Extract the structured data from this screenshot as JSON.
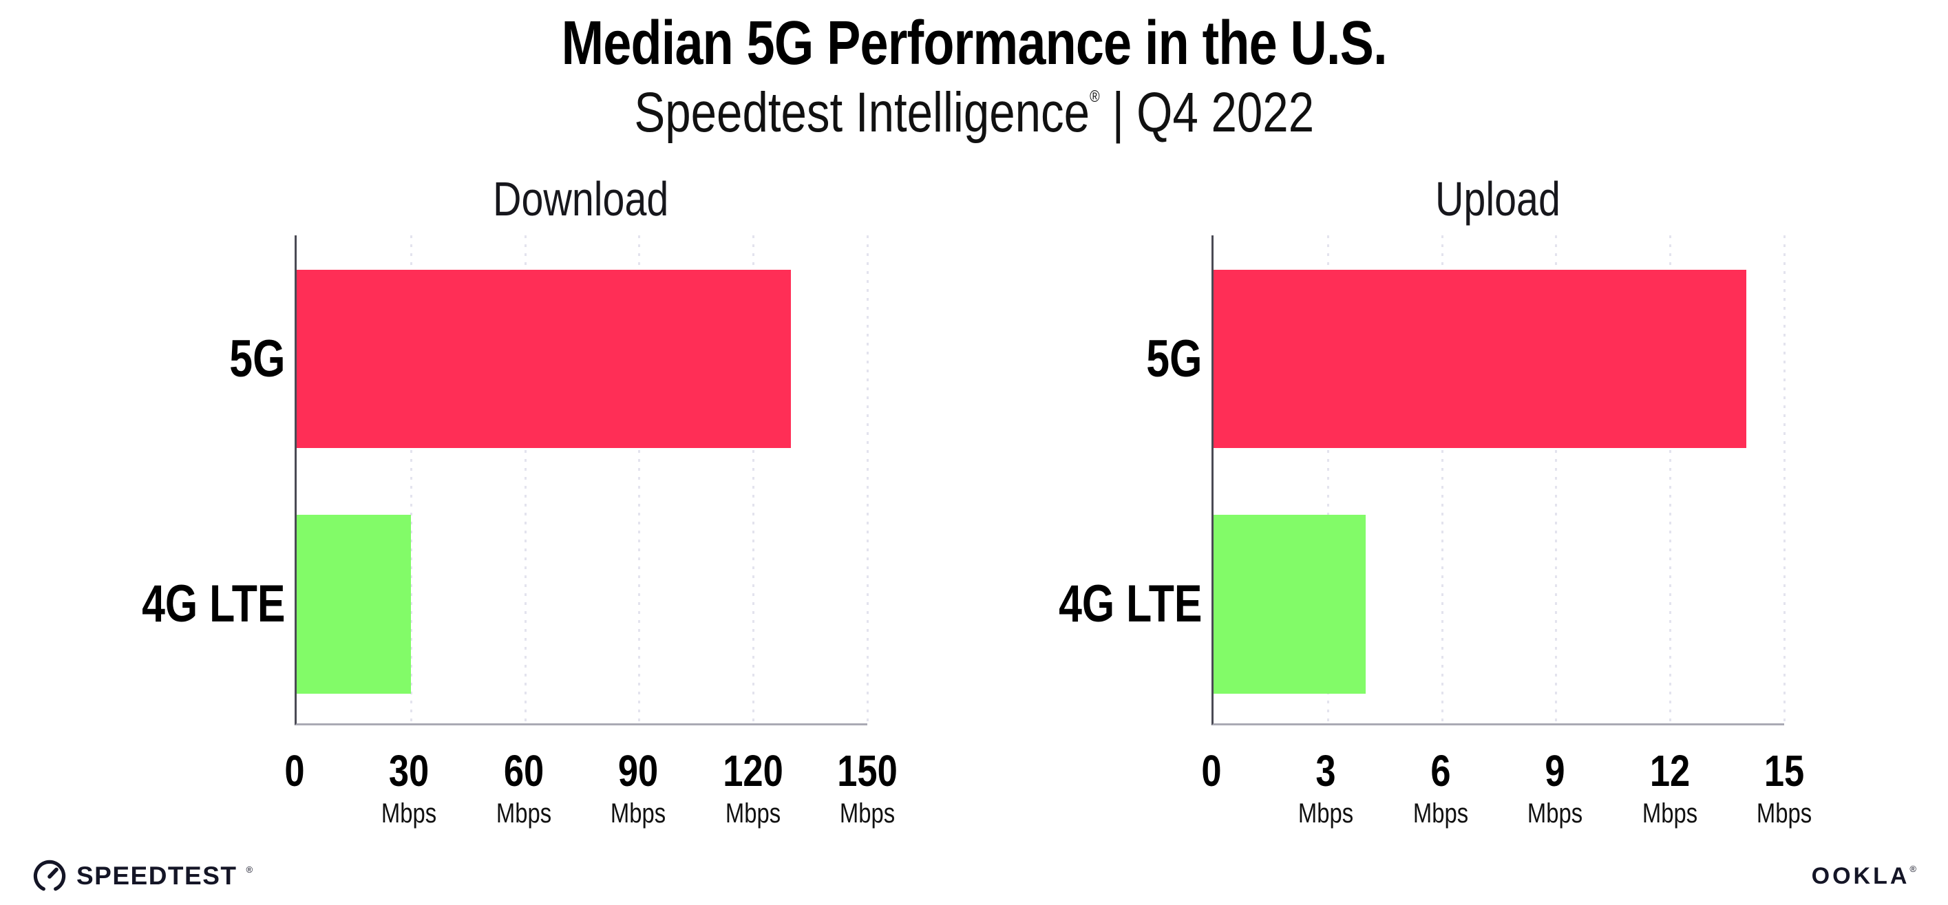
{
  "header": {
    "title": "Median 5G Performance in the U.S.",
    "subtitle_brand": "Speedtest Intelligence",
    "subtitle_reg": "®",
    "subtitle_separator": "|",
    "subtitle_period": "Q4 2022"
  },
  "colors": {
    "bar_5g": "#FF2E56",
    "bar_4g_lte": "#82FB68",
    "gridline": "#e3e3ee",
    "y_axis": "#4a4a54",
    "x_axis": "#aaaab4",
    "text": "#000000"
  },
  "chart_data": [
    {
      "type": "bar",
      "orientation": "horizontal",
      "title": "Download",
      "categories": [
        "5G",
        "4G LTE"
      ],
      "values": [
        130,
        30
      ],
      "unit": "Mbps",
      "xlabel": "",
      "ylabel": "",
      "xlim": [
        0,
        150
      ],
      "xticks": [
        0,
        30,
        60,
        90,
        120,
        150
      ],
      "bar_colors": [
        "#FF2E56",
        "#82FB68"
      ],
      "grid": "dotted-vertical",
      "legend": "none"
    },
    {
      "type": "bar",
      "orientation": "horizontal",
      "title": "Upload",
      "categories": [
        "5G",
        "4G LTE"
      ],
      "values": [
        14,
        4
      ],
      "unit": "Mbps",
      "xlabel": "",
      "ylabel": "",
      "xlim": [
        0,
        15
      ],
      "xticks": [
        0,
        3,
        6,
        9,
        12,
        15
      ],
      "bar_colors": [
        "#FF2E56",
        "#82FB68"
      ],
      "grid": "dotted-vertical",
      "legend": "none"
    }
  ],
  "footer": {
    "speedtest_label": "SPEEDTEST",
    "speedtest_mark": "®",
    "ookla_label": "OOKLA",
    "ookla_mark": "®",
    "gauge_icon": "speedtest-gauge"
  }
}
